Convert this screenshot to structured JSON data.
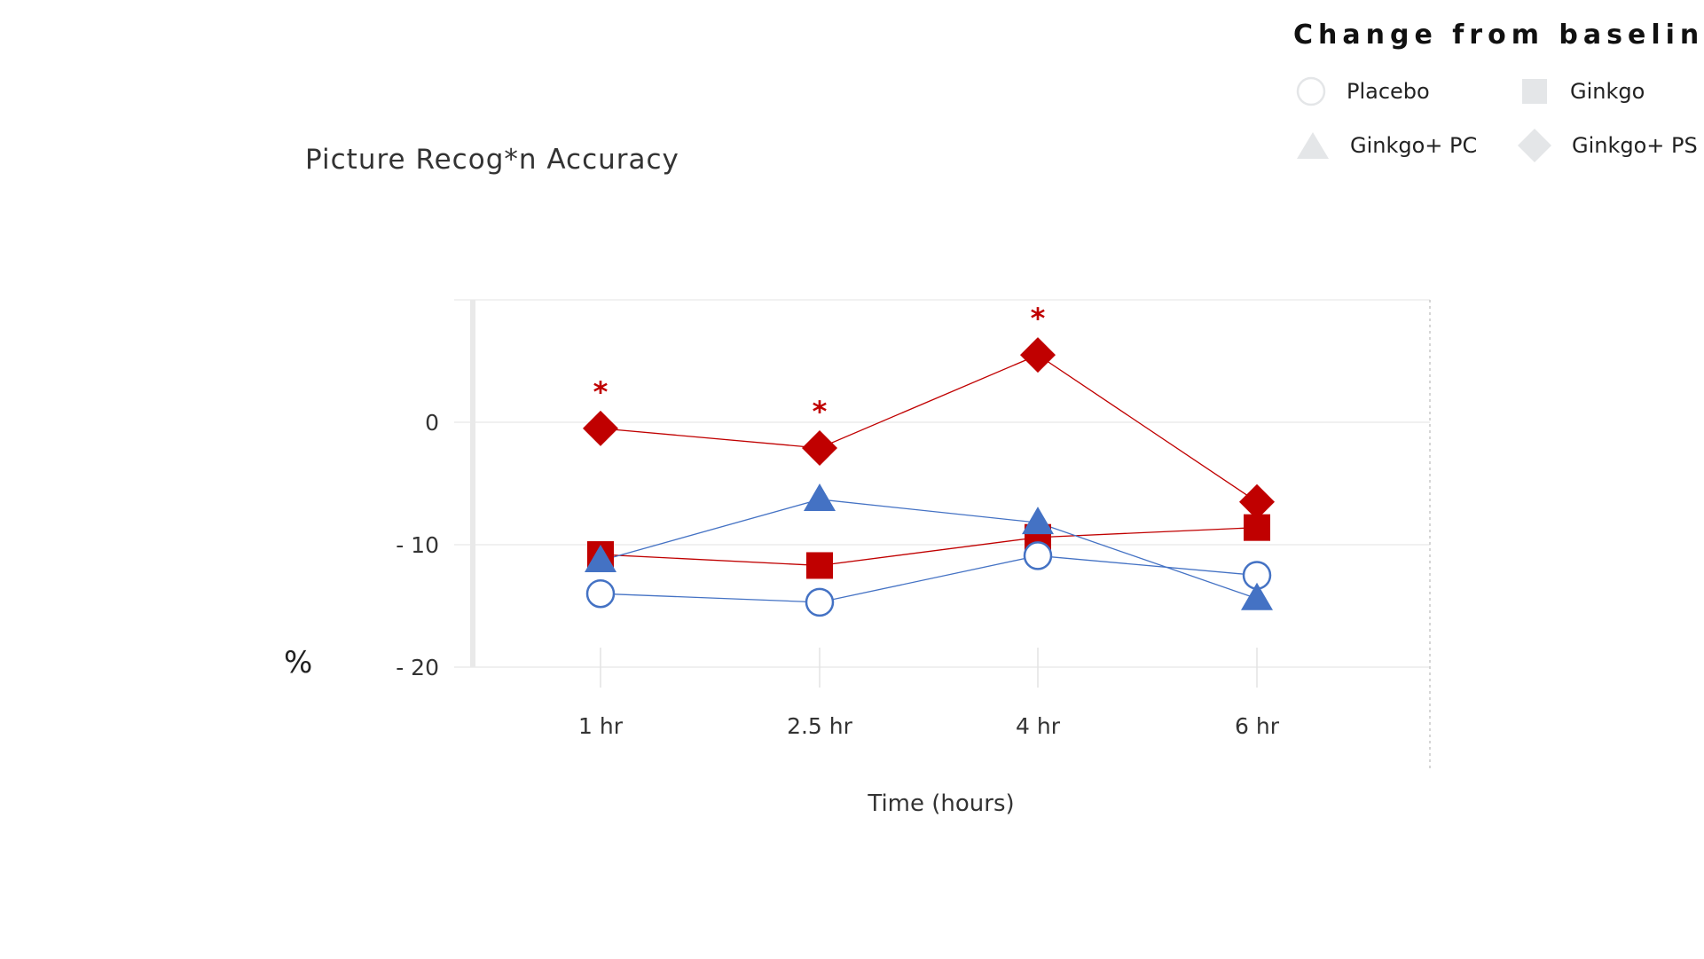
{
  "legend": {
    "title": "Change from baseline",
    "items": [
      {
        "label": "Placebo",
        "marker": "circle-icon"
      },
      {
        "label": "Ginkgo",
        "marker": "square-icon"
      },
      {
        "label": "Ginkgo+ PC",
        "marker": "triangle-icon"
      },
      {
        "label": "Ginkgo+ PS",
        "marker": "diamond-icon"
      }
    ]
  },
  "colors": {
    "blue": "#4472c4",
    "red": "#c00000",
    "legend_gray": "#e4e6e8",
    "grid": "#e6e6e6"
  },
  "chart_data": {
    "type": "line",
    "title": "Picture Recog*n Accuracy",
    "ylabel": "%",
    "xlabel": "Time (hours)",
    "categories": [
      "1 hr",
      "2.5 hr",
      "4 hr",
      "6 hr"
    ],
    "ylim": [
      -20,
      10
    ],
    "yticks": [
      0,
      -10,
      -20
    ],
    "ytick_labels": [
      "0",
      "- 10",
      "- 20"
    ],
    "series": [
      {
        "name": "Placebo",
        "marker": "circle",
        "color": "#4472c4",
        "values": [
          -14,
          -14.7,
          -10.9,
          -12.5
        ]
      },
      {
        "name": "Ginkgo",
        "marker": "square",
        "color": "#c00000",
        "values": [
          -10.8,
          -11.7,
          -9.4,
          -8.6
        ]
      },
      {
        "name": "Ginkgo+ PC",
        "marker": "triangle",
        "color": "#4472c4",
        "values": [
          -11.3,
          -6.3,
          -8.2,
          -14.4
        ]
      },
      {
        "name": "Ginkgo+ PS",
        "marker": "diamond",
        "color": "#c00000",
        "values": [
          -0.5,
          -2.1,
          5.5,
          -6.5
        ],
        "significant": [
          true,
          true,
          true,
          false
        ]
      }
    ],
    "significance_marker": "*"
  }
}
